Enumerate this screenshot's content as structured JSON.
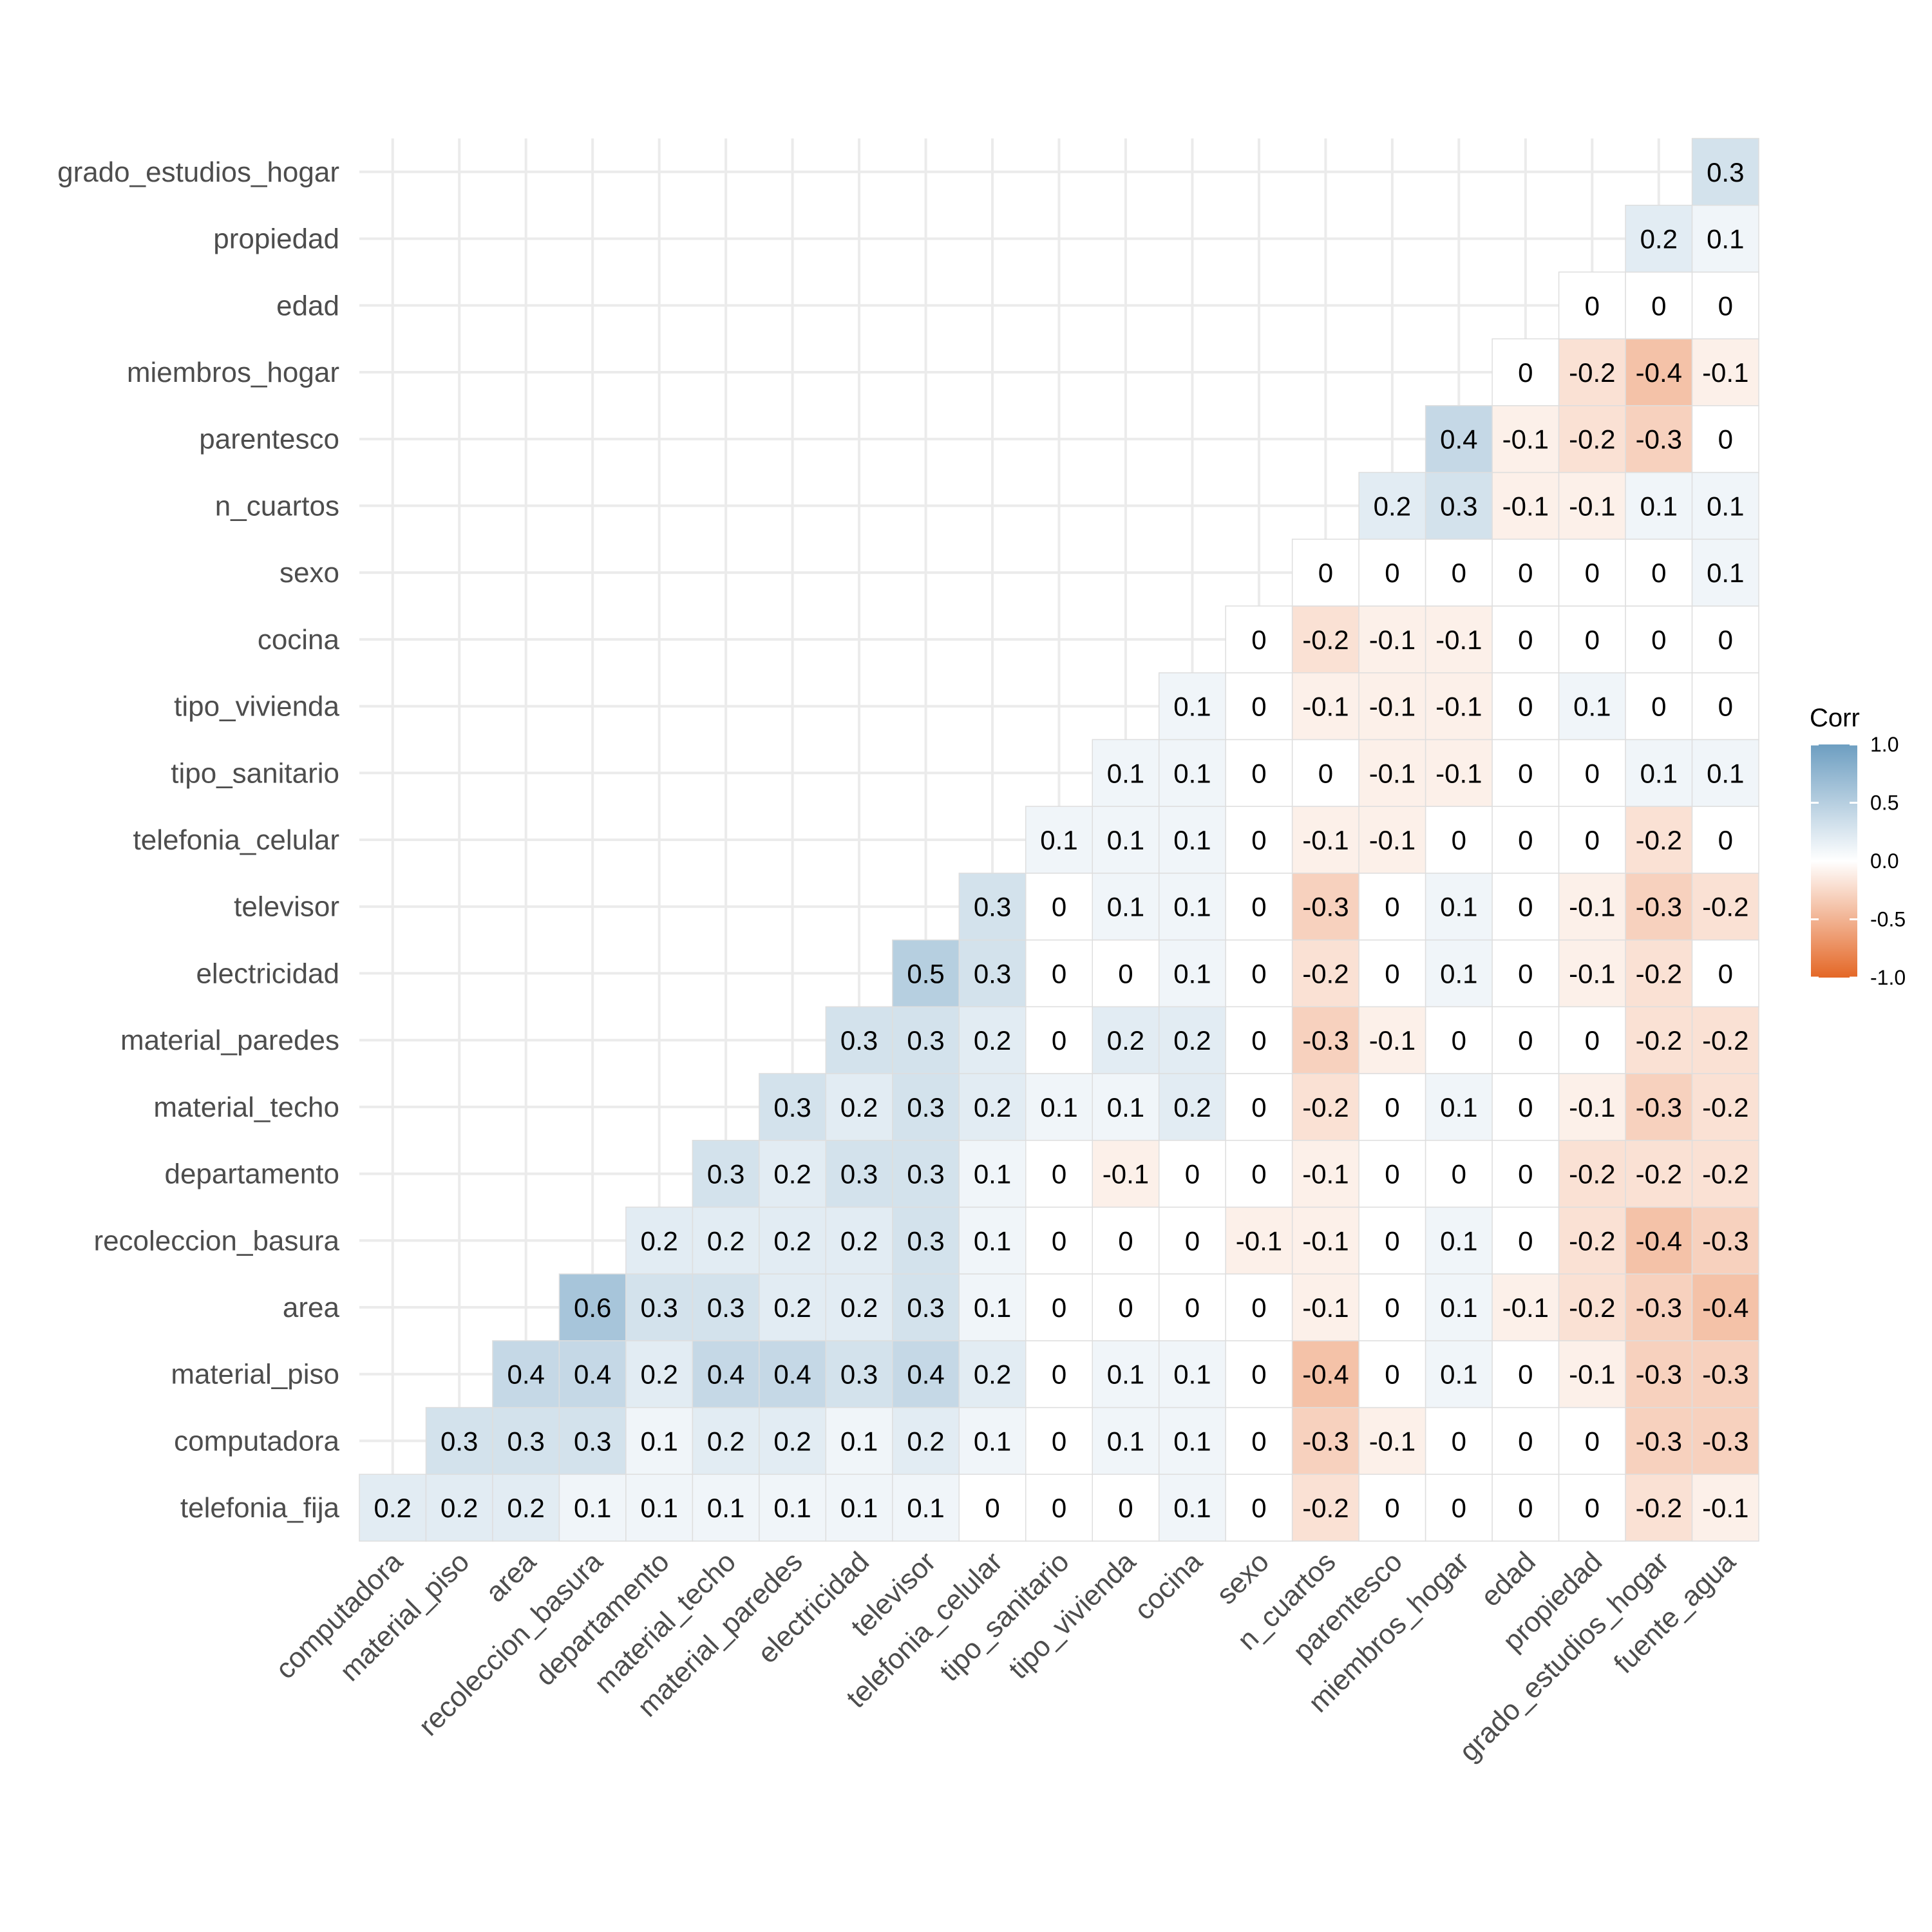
{
  "chart_data": {
    "type": "heatmap",
    "title": "",
    "xlabel": "",
    "ylabel": "",
    "x_categories": [
      "computadora",
      "material_piso",
      "area",
      "recoleccion_basura",
      "departamento",
      "material_techo",
      "material_paredes",
      "electricidad",
      "televisor",
      "telefonia_celular",
      "tipo_sanitario",
      "tipo_vivienda",
      "cocina",
      "sexo",
      "n_cuartos",
      "parentesco",
      "miembros_hogar",
      "edad",
      "propiedad",
      "grado_estudios_hogar",
      "fuente_agua"
    ],
    "y_categories": [
      "telefonia_fija",
      "computadora",
      "material_piso",
      "area",
      "recoleccion_basura",
      "departamento",
      "material_techo",
      "material_paredes",
      "electricidad",
      "televisor",
      "telefonia_celular",
      "tipo_sanitario",
      "tipo_vivienda",
      "cocina",
      "sexo",
      "n_cuartos",
      "parentesco",
      "miembros_hogar",
      "edad",
      "propiedad",
      "grado_estudios_hogar"
    ],
    "rows": [
      {
        "y": "telefonia_fija",
        "values": [
          "0.2",
          "0.2",
          "0.2",
          "0.1",
          "0.1",
          "0.1",
          "0.1",
          "0.1",
          "0.1",
          "0",
          "0",
          "0",
          "0.1",
          "0",
          "-0.2",
          "0",
          "0",
          "0",
          "0",
          "-0.2",
          "-0.1"
        ]
      },
      {
        "y": "computadora",
        "values": [
          "0.3",
          "0.3",
          "0.3",
          "0.1",
          "0.2",
          "0.2",
          "0.1",
          "0.2",
          "0.1",
          "0",
          "0.1",
          "0.1",
          "0",
          "-0.3",
          "-0.1",
          "0",
          "0",
          "0",
          "-0.3",
          "-0.3"
        ]
      },
      {
        "y": "material_piso",
        "values": [
          "0.4",
          "0.4",
          "0.2",
          "0.4",
          "0.4",
          "0.3",
          "0.4",
          "0.2",
          "0",
          "0.1",
          "0.1",
          "0",
          "-0.4",
          "0",
          "0.1",
          "0",
          "-0.1",
          "-0.3",
          "-0.3"
        ]
      },
      {
        "y": "area",
        "values": [
          "0.6",
          "0.3",
          "0.3",
          "0.2",
          "0.2",
          "0.3",
          "0.1",
          "0",
          "0",
          "0",
          "0",
          "-0.1",
          "0",
          "0.1",
          "-0.1",
          "-0.2",
          "-0.3",
          "-0.4"
        ]
      },
      {
        "y": "recoleccion_basura",
        "values": [
          "0.2",
          "0.2",
          "0.2",
          "0.2",
          "0.3",
          "0.1",
          "0",
          "0",
          "0",
          "-0.1",
          "-0.1",
          "0",
          "0.1",
          "0",
          "-0.2",
          "-0.4",
          "-0.3"
        ]
      },
      {
        "y": "departamento",
        "values": [
          "0.3",
          "0.2",
          "0.3",
          "0.3",
          "0.1",
          "0",
          "-0.1",
          "0",
          "0",
          "-0.1",
          "0",
          "0",
          "0",
          "-0.2",
          "-0.2",
          "-0.2"
        ]
      },
      {
        "y": "material_techo",
        "values": [
          "0.3",
          "0.2",
          "0.3",
          "0.2",
          "0.1",
          "0.1",
          "0.2",
          "0",
          "-0.2",
          "0",
          "0.1",
          "0",
          "-0.1",
          "-0.3",
          "-0.2"
        ]
      },
      {
        "y": "material_paredes",
        "values": [
          "0.3",
          "0.3",
          "0.2",
          "0",
          "0.2",
          "0.2",
          "0",
          "-0.3",
          "-0.1",
          "0",
          "0",
          "0",
          "-0.2",
          "-0.2"
        ]
      },
      {
        "y": "electricidad",
        "values": [
          "0.5",
          "0.3",
          "0",
          "0",
          "0.1",
          "0",
          "-0.2",
          "0",
          "0.1",
          "0",
          "-0.1",
          "-0.2",
          "0"
        ]
      },
      {
        "y": "televisor",
        "values": [
          "0.3",
          "0",
          "0.1",
          "0.1",
          "0",
          "-0.3",
          "0",
          "0.1",
          "0",
          "-0.1",
          "-0.3",
          "-0.2"
        ]
      },
      {
        "y": "telefonia_celular",
        "values": [
          "0.1",
          "0.1",
          "0.1",
          "0",
          "-0.1",
          "-0.1",
          "0",
          "0",
          "0",
          "-0.2",
          "0"
        ]
      },
      {
        "y": "tipo_sanitario",
        "values": [
          "0.1",
          "0.1",
          "0",
          "0",
          "-0.1",
          "-0.1",
          "0",
          "0",
          "0.1",
          "0.1"
        ]
      },
      {
        "y": "tipo_vivienda",
        "values": [
          "0.1",
          "0",
          "-0.1",
          "-0.1",
          "-0.1",
          "0",
          "0.1",
          "0",
          "0"
        ]
      },
      {
        "y": "cocina",
        "values": [
          "0",
          "-0.2",
          "-0.1",
          "-0.1",
          "0",
          "0",
          "0",
          "0"
        ]
      },
      {
        "y": "sexo",
        "values": [
          "0",
          "0",
          "0",
          "0",
          "0",
          "0",
          "0.1"
        ]
      },
      {
        "y": "n_cuartos",
        "values": [
          "0.2",
          "0.3",
          "-0.1",
          "-0.1",
          "0.1",
          "0.1"
        ]
      },
      {
        "y": "parentesco",
        "values": [
          "0.4",
          "-0.1",
          "-0.2",
          "-0.3",
          "0"
        ]
      },
      {
        "y": "miembros_hogar",
        "values": [
          "0",
          "-0.2",
          "-0.4",
          "-0.1"
        ]
      },
      {
        "y": "edad",
        "values": [
          "0",
          "0",
          "0"
        ]
      },
      {
        "y": "propiedad",
        "values": [
          "0.2",
          "0.1"
        ]
      },
      {
        "y": "grado_estudios_hogar",
        "values": [
          "0.3"
        ]
      }
    ],
    "legend": {
      "title": "Corr",
      "ticks": [
        "1.0",
        "0.5",
        "0.0",
        "-0.5",
        "-1.0"
      ],
      "tick_values": [
        1,
        0.5,
        0,
        -0.5,
        -1
      ],
      "range": [
        -1,
        1
      ],
      "position": "right"
    },
    "colors": {
      "high": "#6d9ec1",
      "mid": "#ffffff",
      "low": "#e46726"
    },
    "grid": true
  }
}
